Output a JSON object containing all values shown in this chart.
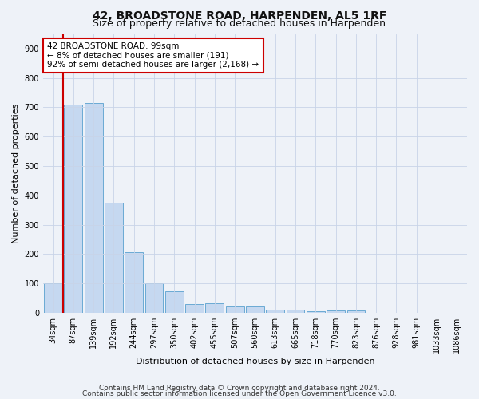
{
  "title": "42, BROADSTONE ROAD, HARPENDEN, AL5 1RF",
  "subtitle": "Size of property relative to detached houses in Harpenden",
  "xlabel": "Distribution of detached houses by size in Harpenden",
  "ylabel": "Number of detached properties",
  "categories": [
    "34sqm",
    "87sqm",
    "139sqm",
    "192sqm",
    "244sqm",
    "297sqm",
    "350sqm",
    "402sqm",
    "455sqm",
    "507sqm",
    "560sqm",
    "613sqm",
    "665sqm",
    "718sqm",
    "770sqm",
    "823sqm",
    "876sqm",
    "928sqm",
    "981sqm",
    "1033sqm",
    "1086sqm"
  ],
  "values": [
    100,
    710,
    715,
    375,
    205,
    100,
    72,
    30,
    32,
    22,
    22,
    10,
    10,
    5,
    8,
    8,
    0,
    0,
    0,
    0,
    0
  ],
  "bar_color": "#c5d8f0",
  "bar_edge_color": "#6aaad4",
  "vline_x_index": 0.5,
  "vline_color": "#cc0000",
  "annotation_text": "42 BROADSTONE ROAD: 99sqm\n← 8% of detached houses are smaller (191)\n92% of semi-detached houses are larger (2,168) →",
  "annotation_box_color": "#ffffff",
  "annotation_box_edge_color": "#cc0000",
  "ylim": [
    0,
    950
  ],
  "yticks": [
    0,
    100,
    200,
    300,
    400,
    500,
    600,
    700,
    800,
    900
  ],
  "footer1": "Contains HM Land Registry data © Crown copyright and database right 2024.",
  "footer2": "Contains public sector information licensed under the Open Government Licence v3.0.",
  "background_color": "#eef2f8",
  "plot_background_color": "#eef2f8",
  "title_fontsize": 10,
  "subtitle_fontsize": 9,
  "tick_fontsize": 7,
  "ylabel_fontsize": 8,
  "xlabel_fontsize": 8,
  "footer_fontsize": 6.5,
  "annotation_fontsize": 7.5
}
